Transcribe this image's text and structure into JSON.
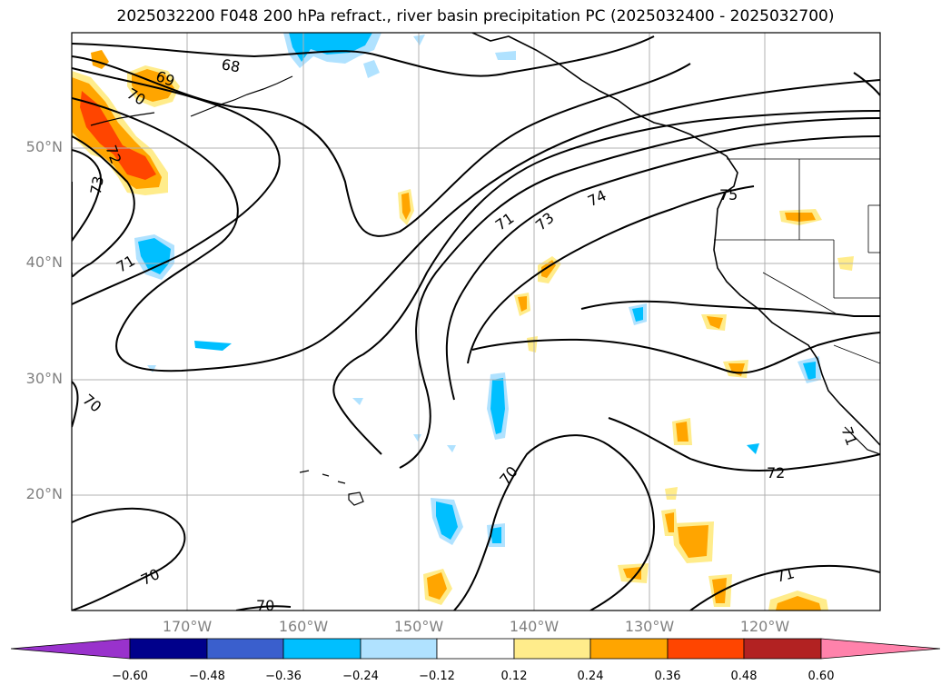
{
  "title": "2025032200 F048 200 hPa refract., river basin precipitation PC (2025032400 - 2025032700)",
  "lat_labels": [
    "50°N",
    "40°N",
    "30°N",
    "20°N"
  ],
  "lon_labels": [
    "170°W",
    "160°W",
    "150°W",
    "140°W",
    "130°W",
    "120°W"
  ],
  "contour_labels": [
    "68",
    "69",
    "70",
    "72",
    "73",
    "71",
    "70",
    "70",
    "71",
    "73",
    "74",
    "75",
    "72",
    "70",
    "70",
    "71",
    "71"
  ],
  "colorbar": {
    "ticks": [
      "−0.60",
      "−0.48",
      "−0.36",
      "−0.24",
      "−0.12",
      "0.12",
      "0.24",
      "0.36",
      "0.48",
      "0.60"
    ],
    "colors": [
      "#9932cc",
      "#00008b",
      "#3a5fcd",
      "#00bfff",
      "#b0e2ff",
      "#ffffff",
      "#ffec8b",
      "#ffa500",
      "#ff4500",
      "#b22222",
      "#ff82ab"
    ]
  }
}
